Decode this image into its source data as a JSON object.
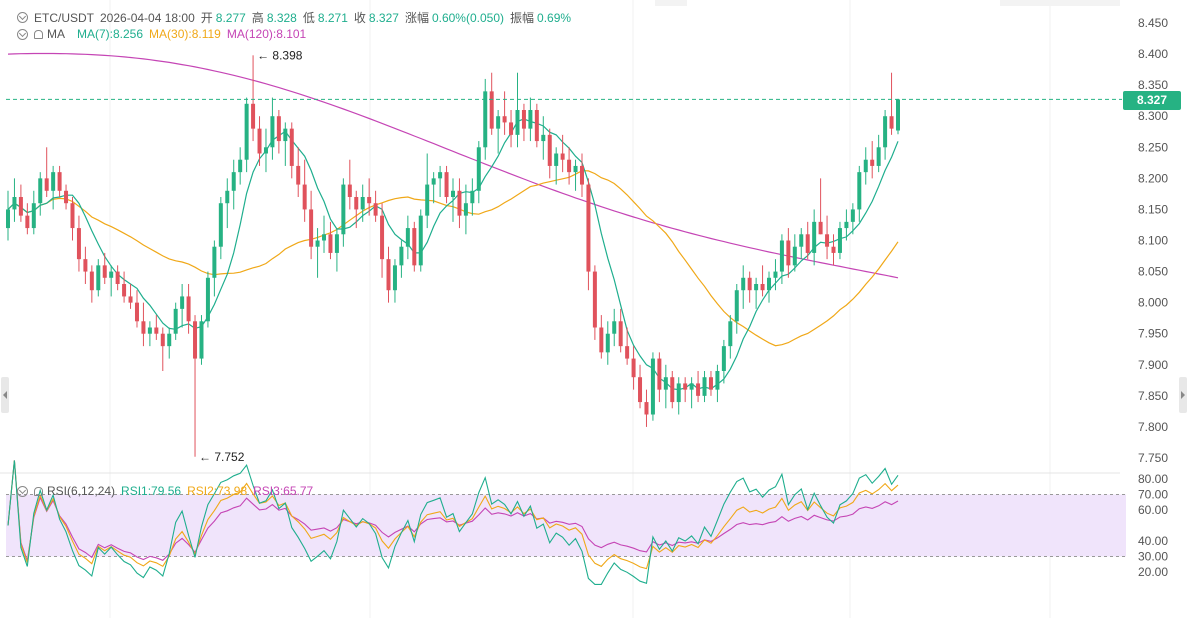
{
  "header": {
    "symbol": "ETC/USDT",
    "datetime": "2026-04-04 18:00",
    "open_label": "开",
    "open": "8.277",
    "high_label": "高",
    "high": "8.328",
    "low_label": "低",
    "low": "8.271",
    "close_label": "收",
    "close": "8.327",
    "change_label": "涨幅",
    "change": "0.60%(0.050)",
    "amp_label": "振幅",
    "amp": "0.69%"
  },
  "ma_legend": {
    "name": "MA",
    "ma7": "MA(7):8.256",
    "ma30": "MA(30):8.119",
    "ma120": "MA(120):8.101"
  },
  "rsi_legend": {
    "name": "RSI(6,12,24)",
    "rsi1": "RSI1:79.56",
    "rsi2": "RSI2:73.98",
    "rsi3": "RSI3:65.77"
  },
  "current_price": "8.327",
  "annotations": {
    "high_mark": "← 8.398",
    "low_mark": "← 7.752"
  },
  "colors": {
    "up": "#26b283",
    "down": "#e0525c",
    "ma7": "#1fae8e",
    "ma30": "#f0a818",
    "ma120": "#c545b5",
    "rsi_band": "#f0e4fb"
  },
  "chart_data": {
    "type": "candlestick",
    "price_axis": {
      "min": 7.75,
      "max": 8.45,
      "ticks": [
        "8.450",
        "8.400",
        "8.350",
        "8.300",
        "8.250",
        "8.200",
        "8.150",
        "8.100",
        "8.050",
        "8.000",
        "7.950",
        "7.900",
        "7.850",
        "7.800",
        "7.750"
      ]
    },
    "rsi_axis": {
      "ticks": [
        "80.00",
        "70.00",
        "60.00",
        "40.00",
        "30.00",
        "20.00"
      ],
      "band": [
        30,
        70
      ]
    },
    "candles": [
      [
        8.12,
        8.18,
        8.1,
        8.15
      ],
      [
        8.15,
        8.2,
        8.13,
        8.17
      ],
      [
        8.17,
        8.19,
        8.13,
        8.14
      ],
      [
        8.14,
        8.16,
        8.11,
        8.12
      ],
      [
        8.12,
        8.18,
        8.11,
        8.16
      ],
      [
        8.16,
        8.21,
        8.14,
        8.2
      ],
      [
        8.2,
        8.25,
        8.17,
        8.18
      ],
      [
        8.18,
        8.22,
        8.15,
        8.21
      ],
      [
        8.21,
        8.22,
        8.17,
        8.18
      ],
      [
        8.18,
        8.19,
        8.15,
        8.16
      ],
      [
        8.16,
        8.17,
        8.1,
        8.12
      ],
      [
        8.12,
        8.14,
        8.05,
        8.07
      ],
      [
        8.07,
        8.09,
        8.03,
        8.05
      ],
      [
        8.05,
        8.06,
        8.0,
        8.02
      ],
      [
        8.02,
        8.07,
        8.01,
        8.06
      ],
      [
        8.06,
        8.08,
        8.03,
        8.04
      ],
      [
        8.04,
        8.06,
        8.01,
        8.05
      ],
      [
        8.05,
        8.06,
        8.02,
        8.03
      ],
      [
        8.03,
        8.05,
        8.0,
        8.01
      ],
      [
        8.01,
        8.03,
        7.99,
        8.0
      ],
      [
        8.0,
        8.02,
        7.96,
        7.97
      ],
      [
        7.97,
        8.0,
        7.93,
        7.95
      ],
      [
        7.95,
        7.97,
        7.93,
        7.96
      ],
      [
        7.96,
        7.98,
        7.94,
        7.95
      ],
      [
        7.95,
        7.96,
        7.89,
        7.93
      ],
      [
        7.93,
        7.96,
        7.91,
        7.95
      ],
      [
        7.95,
        8.0,
        7.94,
        7.99
      ],
      [
        7.99,
        8.03,
        7.96,
        8.01
      ],
      [
        8.01,
        8.03,
        7.95,
        7.97
      ],
      [
        7.97,
        7.98,
        7.752,
        7.91
      ],
      [
        7.91,
        7.98,
        7.9,
        7.97
      ],
      [
        7.97,
        8.05,
        7.96,
        8.04
      ],
      [
        8.04,
        8.1,
        8.01,
        8.09
      ],
      [
        8.09,
        8.17,
        8.07,
        8.16
      ],
      [
        8.16,
        8.2,
        8.12,
        8.18
      ],
      [
        8.18,
        8.23,
        8.15,
        8.21
      ],
      [
        8.21,
        8.25,
        8.19,
        8.23
      ],
      [
        8.23,
        8.33,
        8.21,
        8.32
      ],
      [
        8.32,
        8.398,
        8.26,
        8.28
      ],
      [
        8.28,
        8.3,
        8.22,
        8.24
      ],
      [
        8.24,
        8.28,
        8.21,
        8.25
      ],
      [
        8.25,
        8.33,
        8.23,
        8.3
      ],
      [
        8.3,
        8.31,
        8.24,
        8.26
      ],
      [
        8.26,
        8.29,
        8.22,
        8.28
      ],
      [
        8.28,
        8.29,
        8.2,
        8.22
      ],
      [
        8.22,
        8.25,
        8.17,
        8.19
      ],
      [
        8.19,
        8.23,
        8.13,
        8.15
      ],
      [
        8.15,
        8.18,
        8.07,
        8.09
      ],
      [
        8.09,
        8.12,
        8.04,
        8.1
      ],
      [
        8.1,
        8.14,
        8.08,
        8.11
      ],
      [
        8.11,
        8.13,
        8.07,
        8.08
      ],
      [
        8.08,
        8.12,
        8.05,
        8.11
      ],
      [
        8.11,
        8.2,
        8.09,
        8.19
      ],
      [
        8.19,
        8.23,
        8.15,
        8.17
      ],
      [
        8.17,
        8.18,
        8.12,
        8.15
      ],
      [
        8.15,
        8.19,
        8.13,
        8.17
      ],
      [
        8.17,
        8.2,
        8.14,
        8.16
      ],
      [
        8.16,
        8.18,
        8.13,
        8.14
      ],
      [
        8.14,
        8.16,
        8.04,
        8.07
      ],
      [
        8.07,
        8.09,
        8.0,
        8.02
      ],
      [
        8.02,
        8.07,
        8.0,
        8.06
      ],
      [
        8.06,
        8.1,
        8.04,
        8.09
      ],
      [
        8.09,
        8.14,
        8.07,
        8.12
      ],
      [
        8.12,
        8.13,
        8.05,
        8.06
      ],
      [
        8.06,
        8.15,
        8.05,
        8.14
      ],
      [
        8.14,
        8.24,
        8.12,
        8.19
      ],
      [
        8.19,
        8.21,
        8.16,
        8.2
      ],
      [
        8.2,
        8.22,
        8.17,
        8.21
      ],
      [
        8.21,
        8.22,
        8.16,
        8.17
      ],
      [
        8.17,
        8.2,
        8.13,
        8.18
      ],
      [
        8.18,
        8.2,
        8.12,
        8.14
      ],
      [
        8.14,
        8.19,
        8.11,
        8.16
      ],
      [
        8.16,
        8.2,
        8.14,
        8.18
      ],
      [
        8.18,
        8.26,
        8.16,
        8.25
      ],
      [
        8.25,
        8.36,
        8.23,
        8.34
      ],
      [
        8.34,
        8.37,
        8.27,
        8.28
      ],
      [
        8.28,
        8.31,
        8.24,
        8.3
      ],
      [
        8.3,
        8.34,
        8.27,
        8.29
      ],
      [
        8.29,
        8.31,
        8.25,
        8.27
      ],
      [
        8.27,
        8.37,
        8.25,
        8.31
      ],
      [
        8.31,
        8.32,
        8.26,
        8.28
      ],
      [
        8.28,
        8.33,
        8.26,
        8.31
      ],
      [
        8.31,
        8.32,
        8.25,
        8.26
      ],
      [
        8.26,
        8.3,
        8.23,
        8.27
      ],
      [
        8.27,
        8.28,
        8.2,
        8.22
      ],
      [
        8.22,
        8.25,
        8.19,
        8.24
      ],
      [
        8.24,
        8.27,
        8.21,
        8.23
      ],
      [
        8.23,
        8.25,
        8.19,
        8.21
      ],
      [
        8.21,
        8.23,
        8.18,
        8.22
      ],
      [
        8.22,
        8.24,
        8.17,
        8.19
      ],
      [
        8.19,
        8.2,
        8.02,
        8.05
      ],
      [
        8.05,
        8.06,
        7.94,
        7.96
      ],
      [
        7.96,
        7.98,
        7.91,
        7.92
      ],
      [
        7.92,
        7.97,
        7.9,
        7.95
      ],
      [
        7.95,
        7.99,
        7.93,
        7.97
      ],
      [
        7.97,
        7.99,
        7.92,
        7.93
      ],
      [
        7.93,
        7.96,
        7.9,
        7.91
      ],
      [
        7.91,
        7.93,
        7.86,
        7.88
      ],
      [
        7.88,
        7.9,
        7.83,
        7.84
      ],
      [
        7.84,
        7.86,
        7.8,
        7.82
      ],
      [
        7.82,
        7.92,
        7.81,
        7.91
      ],
      [
        7.91,
        7.92,
        7.84,
        7.86
      ],
      [
        7.86,
        7.9,
        7.83,
        7.88
      ],
      [
        7.88,
        7.89,
        7.83,
        7.84
      ],
      [
        7.84,
        7.88,
        7.82,
        7.87
      ],
      [
        7.87,
        7.88,
        7.84,
        7.86
      ],
      [
        7.86,
        7.88,
        7.83,
        7.87
      ],
      [
        7.87,
        7.89,
        7.84,
        7.85
      ],
      [
        7.85,
        7.89,
        7.84,
        7.88
      ],
      [
        7.88,
        7.89,
        7.85,
        7.86
      ],
      [
        7.86,
        7.9,
        7.84,
        7.89
      ],
      [
        7.89,
        7.94,
        7.87,
        7.93
      ],
      [
        7.93,
        7.98,
        7.91,
        7.97
      ],
      [
        7.97,
        8.03,
        7.95,
        8.02
      ],
      [
        8.02,
        8.06,
        7.99,
        8.04
      ],
      [
        8.04,
        8.05,
        8.0,
        8.02
      ],
      [
        8.02,
        8.04,
        7.99,
        8.03
      ],
      [
        8.03,
        8.06,
        8.01,
        8.02
      ],
      [
        8.02,
        8.05,
        8.0,
        8.04
      ],
      [
        8.04,
        8.07,
        8.02,
        8.05
      ],
      [
        8.05,
        8.11,
        8.03,
        8.1
      ],
      [
        8.1,
        8.12,
        8.04,
        8.06
      ],
      [
        8.06,
        8.11,
        8.05,
        8.09
      ],
      [
        8.09,
        8.12,
        8.07,
        8.11
      ],
      [
        8.11,
        8.13,
        8.07,
        8.08
      ],
      [
        8.08,
        8.15,
        8.06,
        8.13
      ],
      [
        8.13,
        8.2,
        8.11,
        8.11
      ],
      [
        8.11,
        8.14,
        8.07,
        8.09
      ],
      [
        8.09,
        8.11,
        8.06,
        8.08
      ],
      [
        8.08,
        8.13,
        8.07,
        8.12
      ],
      [
        8.12,
        8.15,
        8.1,
        8.13
      ],
      [
        8.13,
        8.16,
        8.11,
        8.15
      ],
      [
        8.15,
        8.22,
        8.13,
        8.21
      ],
      [
        8.21,
        8.25,
        8.19,
        8.23
      ],
      [
        8.23,
        8.26,
        8.2,
        8.22
      ],
      [
        8.22,
        8.27,
        8.21,
        8.25
      ],
      [
        8.25,
        8.31,
        8.23,
        8.3
      ],
      [
        8.3,
        8.37,
        8.27,
        8.28
      ],
      [
        8.277,
        8.328,
        8.271,
        8.327
      ]
    ],
    "ma7": {
      "name": "MA(7)",
      "last": 8.256
    },
    "ma30": {
      "name": "MA(30)",
      "last": 8.119
    },
    "ma120": {
      "name": "MA(120)",
      "last": 8.101
    },
    "rsi": {
      "rsi1_last": 79.56,
      "rsi2_last": 73.98,
      "rsi3_last": 65.77
    }
  }
}
